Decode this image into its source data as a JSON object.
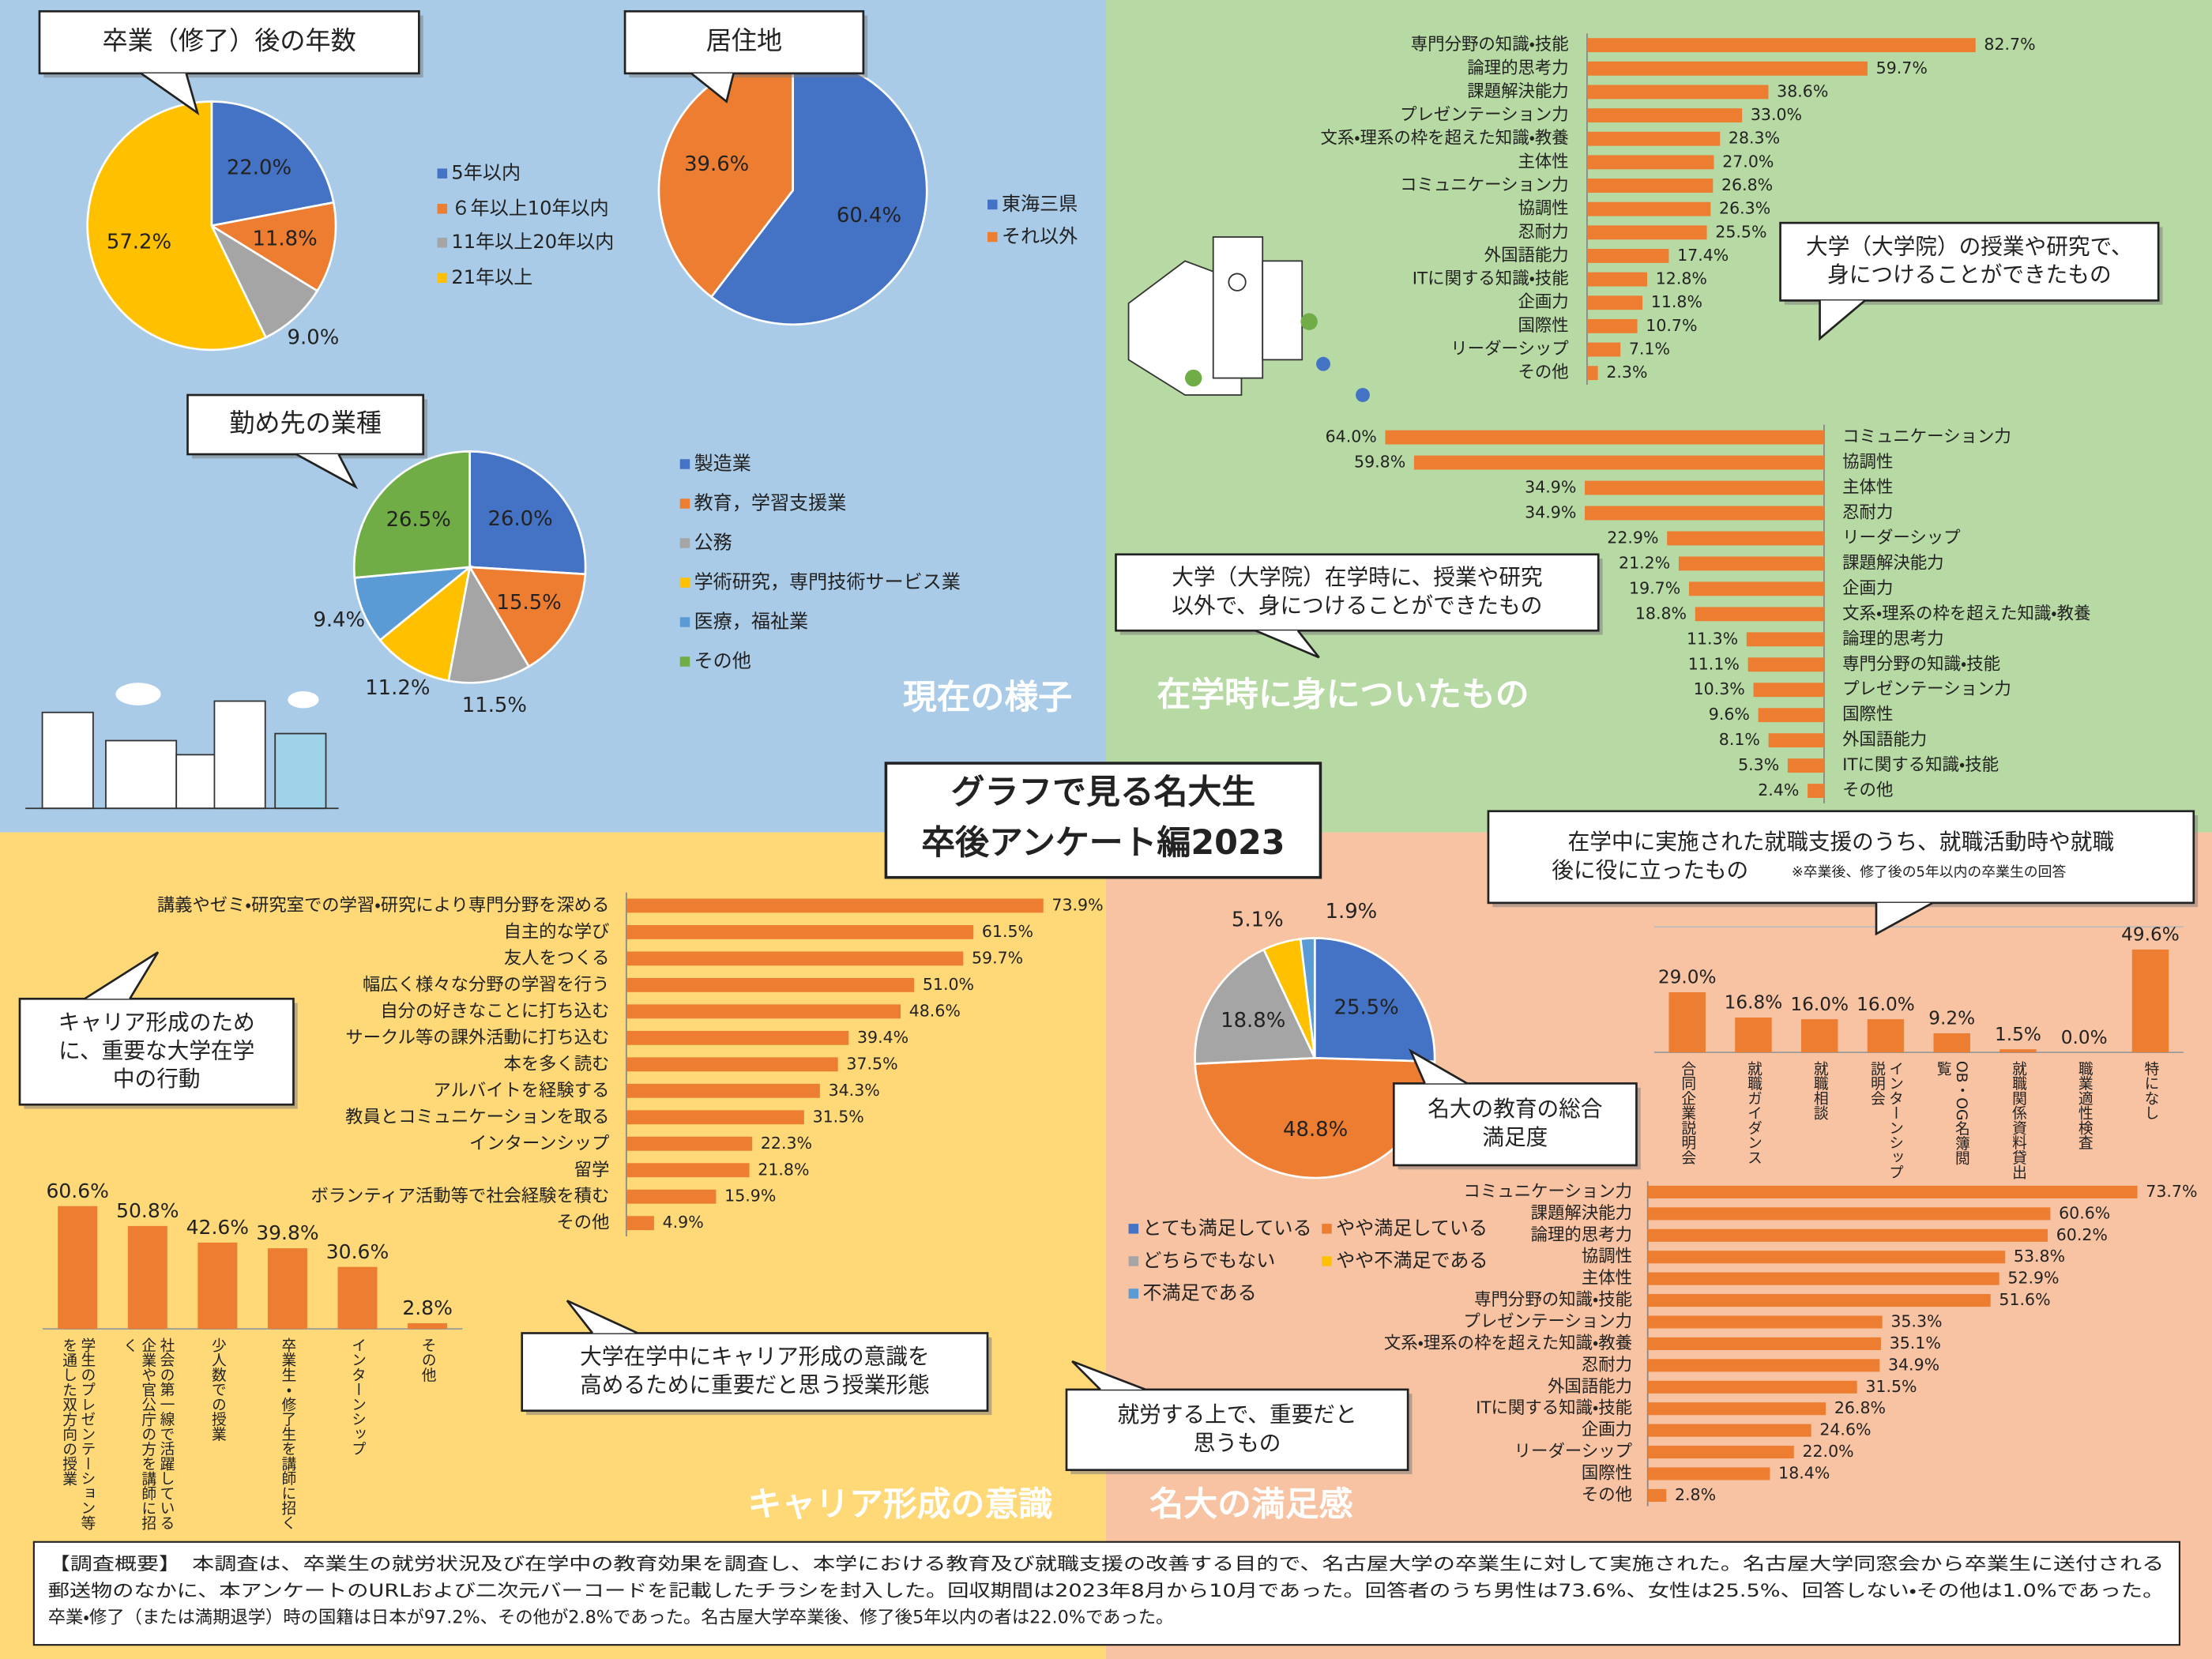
{
  "header": {
    "title": [
      "グラフで見る名大生",
      "卒後アンケート編2023"
    ]
  },
  "sections": [
    "現在の様子",
    "在学時に身についたもの",
    "キャリア形成の意識",
    "名大の満足感"
  ],
  "summary": [
    "【調査概要】　本調査は、卒業生の就労状況及び在学中の教育効果を調査し、本学における教育及び就職支援の改善する目的で、名古屋大学の卒業生に対して実施された。名古屋大学同窓会から卒業生に送付される",
    "郵送物のなかに、本アンケートのURLおよび二次元バーコードを記載したチラシを封入した。回収期間は2023年8月から10月であった。回答者のうち男性は73.6%、女性は25.5%、回答しない・その他は1.0%であった。",
    "卒業・修了（または満期退学）時の国籍は日本が97.2%、その他が2.8%であった。名古屋大学卒業後、修了後5年以内の者は22.0%であった。"
  ],
  "chart_data": [
    {
      "type": "pie",
      "title": [
        "卒業（修了）後の年数"
      ],
      "categories": [
        "5年以内",
        "６年以上10年以内",
        "11年以上20年以内",
        "21年以上"
      ],
      "values": [
        22.0,
        11.8,
        9.0,
        57.2
      ],
      "value_labels": [
        "22.0%",
        "11.8%",
        "9.0%",
        "57.2%"
      ],
      "colors": [
        "#4472c4",
        "#ed7d31",
        "#a5a5a5",
        "#ffc000"
      ]
    },
    {
      "type": "pie",
      "title": [
        "居住地"
      ],
      "categories": [
        "東海三県",
        "それ以外"
      ],
      "values": [
        60.4,
        39.6
      ],
      "value_labels": [
        "60.4%",
        "39.6%"
      ],
      "colors": [
        "#4472c4",
        "#ed7d31"
      ]
    },
    {
      "type": "pie",
      "title": [
        "勤め先の業種"
      ],
      "categories": [
        "製造業",
        "教育，学習支援業",
        "公務",
        "学術研究，専門技術サービス業",
        "医療，福祉業",
        "その他"
      ],
      "values": [
        26.0,
        15.5,
        11.5,
        11.2,
        9.4,
        26.5
      ],
      "value_labels": [
        "26.0%",
        "15.5%",
        "11.5%",
        "11.2%",
        "9.4%",
        "26.5%"
      ],
      "colors": [
        "#4472c4",
        "#ed7d31",
        "#a5a5a5",
        "#ffc000",
        "#5b9bd5",
        "#70ad47"
      ]
    },
    {
      "type": "bar",
      "orientation": "horizontal",
      "x_reversed": false,
      "color": "#ed7d31",
      "title": [
        "大学（大学院）の授業や研究で、",
        "身につけることができたもの"
      ],
      "categories": [
        "専門分野の知識・技能",
        "論理的思考力",
        "課題解決能力",
        "プレゼンテーション力",
        "文系・理系の枠を超えた知識・教養",
        "主体性",
        "コミュニケーション力",
        "協調性",
        "忍耐力",
        "外国語能力",
        "ITに関する知識・技能",
        "企画力",
        "国際性",
        "リーダーシップ",
        "その他"
      ],
      "values": [
        82.7,
        59.7,
        38.6,
        33.0,
        28.3,
        27.0,
        26.8,
        26.3,
        25.5,
        17.4,
        12.8,
        11.8,
        10.7,
        7.1,
        2.3
      ],
      "value_labels": [
        "82.7%",
        "59.7%",
        "38.6%",
        "33.0%",
        "28.3%",
        "27.0%",
        "26.8%",
        "26.3%",
        "25.5%",
        "17.4%",
        "12.8%",
        "11.8%",
        "10.7%",
        "7.1%",
        "2.3%"
      ]
    },
    {
      "type": "bar",
      "orientation": "horizontal",
      "x_reversed": true,
      "color": "#ed7d31",
      "title": [
        "大学（大学院）在学時に、授業や研究",
        "以外で、身につけることができたもの"
      ],
      "categories": [
        "コミュニケーション力",
        "協調性",
        "主体性",
        "忍耐力",
        "リーダーシップ",
        "課題解決能力",
        "企画力",
        "文系・理系の枠を超えた知識・教養",
        "論理的思考力",
        "専門分野の知識・技能",
        "プレゼンテーション力",
        "国際性",
        "外国語能力",
        "ITに関する知識・技能",
        "その他"
      ],
      "values": [
        64.0,
        59.8,
        34.9,
        34.9,
        22.9,
        21.2,
        19.7,
        18.8,
        11.3,
        11.1,
        10.3,
        9.6,
        8.1,
        5.3,
        2.4
      ],
      "value_labels": [
        "64.0%",
        "59.8%",
        "34.9%",
        "34.9%",
        "22.9%",
        "21.2%",
        "19.7%",
        "18.8%",
        "11.3%",
        "11.1%",
        "10.3%",
        "9.6%",
        "8.1%",
        "5.3%",
        "2.4%"
      ]
    },
    {
      "type": "bar",
      "orientation": "horizontal",
      "x_reversed": false,
      "color": "#ed7d31",
      "title": [
        "キャリア形成のため",
        "に、重要な大学在学",
        "中の行動"
      ],
      "categories": [
        "講義やゼミ・研究室での学習・研究により専門分野を深める",
        "自主的な学び",
        "友人をつくる",
        "幅広く様々な分野の学習を行う",
        "自分の好きなことに打ち込む",
        "サークル等の課外活動に打ち込む",
        "本を多く読む",
        "アルバイトを経験する",
        "教員とコミュニケーションを取る",
        "インターンシップ",
        "留学",
        "ボランティア活動等で社会経験を積む",
        "その他"
      ],
      "values": [
        73.9,
        61.5,
        59.7,
        51.0,
        48.6,
        39.4,
        37.5,
        34.3,
        31.5,
        22.3,
        21.8,
        15.9,
        4.9
      ],
      "value_labels": [
        "73.9%",
        "61.5%",
        "59.7%",
        "51.0%",
        "48.6%",
        "39.4%",
        "37.5%",
        "34.3%",
        "31.5%",
        "22.3%",
        "21.8%",
        "15.9%",
        "4.9%"
      ]
    },
    {
      "type": "bar",
      "orientation": "vertical",
      "color": "#ed7d31",
      "title": [
        "大学在学中にキャリア形成の意識を",
        "高めるために重要だと思う授業形態"
      ],
      "categories": [
        "学生のプレゼンテーション等を通した双方向の授業",
        "社会の第一線で活躍している企業や官公庁の方を講師に招く",
        "少人数での授業",
        "卒業生・修了生を講師に招く",
        "インターンシップ",
        "その他"
      ],
      "values": [
        60.6,
        50.8,
        42.6,
        39.8,
        30.6,
        2.8
      ],
      "value_labels": [
        "60.6%",
        "50.8%",
        "42.6%",
        "39.8%",
        "30.6%",
        "2.8%"
      ]
    },
    {
      "type": "pie",
      "title": [
        "名大の教育の総合",
        "満足度"
      ],
      "categories": [
        "とても満足している",
        "やや満足している",
        "どちらでもない",
        "やや不満足である",
        "不満足である"
      ],
      "values": [
        25.5,
        48.8,
        18.8,
        5.1,
        1.9
      ],
      "value_labels": [
        "25.5%",
        "48.8%",
        "18.8%",
        "5.1%",
        "1.9%"
      ],
      "colors": [
        "#4472c4",
        "#ed7d31",
        "#a5a5a5",
        "#ffc000",
        "#5b9bd5"
      ]
    },
    {
      "type": "bar",
      "orientation": "vertical",
      "color": "#ed7d31",
      "title": [
        "在学中に実施された就職支援のうち、就職活動時や就職",
        "後に役に立ったもの"
      ],
      "note": "※卒業後、修了後の5年以内の卒業生の回答",
      "categories": [
        "合同企業説明会",
        "就職ガイダンス",
        "就職相談",
        "インターンシップ説明会",
        "OB・OG名簿閲覧",
        "就職関係資料貸出",
        "職業適性検査",
        "特になし"
      ],
      "values": [
        29.0,
        16.8,
        16.0,
        16.0,
        9.2,
        1.5,
        0.0,
        49.6
      ],
      "value_labels": [
        "29.0%",
        "16.8%",
        "16.0%",
        "16.0%",
        "9.2%",
        "1.5%",
        "0.0%",
        "49.6%"
      ]
    },
    {
      "type": "bar",
      "orientation": "horizontal",
      "x_reversed": false,
      "color": "#ed7d31",
      "title": [
        "就労する上で、重要だと",
        "思うもの"
      ],
      "categories": [
        "コミュニケーション力",
        "課題解決能力",
        "論理的思考力",
        "協調性",
        "主体性",
        "専門分野の知識・技能",
        "プレゼンテーション力",
        "文系・理系の枠を超えた知識・教養",
        "忍耐力",
        "外国語能力",
        "ITに関する知識・技能",
        "企画力",
        "リーダーシップ",
        "国際性",
        "その他"
      ],
      "values": [
        73.7,
        60.6,
        60.2,
        53.8,
        52.9,
        51.6,
        35.3,
        35.1,
        34.9,
        31.5,
        26.8,
        24.6,
        22.0,
        18.4,
        2.8
      ],
      "value_labels": [
        "73.7%",
        "60.6%",
        "60.2%",
        "53.8%",
        "52.9%",
        "51.6%",
        "35.3%",
        "35.1%",
        "34.9%",
        "31.5%",
        "26.8%",
        "24.6%",
        "22.0%",
        "18.4%",
        "2.8%"
      ]
    }
  ]
}
